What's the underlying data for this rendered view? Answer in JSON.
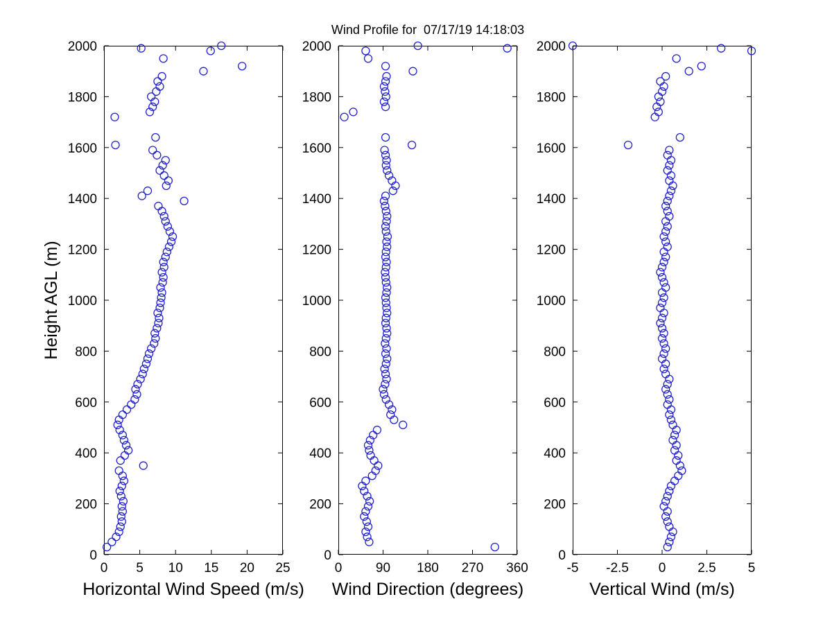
{
  "figure": {
    "background": "#FFFFFF",
    "axis_color": "#000000",
    "marker_color": "#2222CC"
  },
  "chart_data": {
    "type": "scatter",
    "title": "Wind Profile for  07/17/19 14:18:03",
    "legend": "none",
    "grid": false,
    "shared_y": {
      "label": "Height AGL (m)",
      "lim": [
        0,
        2000
      ],
      "ticks": [
        0,
        200,
        400,
        600,
        800,
        1000,
        1200,
        1400,
        1600,
        1800,
        2000
      ]
    },
    "heights": [
      30,
      50,
      70,
      90,
      110,
      130,
      150,
      170,
      190,
      210,
      230,
      250,
      270,
      290,
      310,
      330,
      350,
      370,
      390,
      410,
      430,
      450,
      470,
      490,
      510,
      530,
      550,
      570,
      590,
      610,
      630,
      650,
      670,
      690,
      710,
      730,
      750,
      770,
      790,
      810,
      830,
      850,
      870,
      890,
      910,
      930,
      950,
      970,
      990,
      1010,
      1030,
      1050,
      1070,
      1090,
      1110,
      1130,
      1150,
      1170,
      1190,
      1210,
      1230,
      1250,
      1270,
      1290,
      1310,
      1330,
      1350,
      1370,
      1390,
      1410,
      1430,
      1450,
      1470,
      1490,
      1510,
      1530,
      1550,
      1570,
      1590,
      1610,
      1640,
      1720,
      1740,
      1760,
      1780,
      1800,
      1820,
      1840,
      1860,
      1880,
      1900,
      1920,
      1950,
      1980,
      1990,
      2000
    ],
    "panels": [
      {
        "xlabel": "Horizontal Wind Speed (m/s)",
        "xlim": [
          0,
          25
        ],
        "xticks": [
          0,
          5,
          10,
          15,
          20,
          25
        ],
        "values": [
          0.4,
          1.1,
          1.7,
          2.1,
          2.3,
          2.5,
          2.4,
          2.6,
          2.5,
          2.7,
          2.4,
          2.2,
          2.5,
          2.8,
          2.6,
          2.1,
          5.5,
          2.3,
          2.9,
          3.4,
          3.1,
          2.8,
          2.6,
          2.2,
          1.9,
          2.1,
          2.6,
          3.2,
          3.8,
          4.3,
          4.6,
          4.4,
          4.7,
          5.1,
          5.4,
          5.6,
          5.9,
          6.1,
          6.3,
          6.6,
          7.0,
          7.2,
          7.1,
          7.4,
          7.6,
          7.7,
          7.5,
          7.8,
          7.9,
          8.0,
          8.1,
          7.9,
          8.2,
          8.3,
          8.1,
          8.4,
          8.3,
          8.6,
          8.8,
          9.1,
          9.4,
          9.6,
          9.2,
          8.9,
          8.6,
          8.4,
          8.1,
          7.6,
          11.2,
          5.3,
          6.1,
          8.7,
          9.0,
          8.4,
          7.8,
          8.2,
          8.6,
          7.4,
          6.8,
          1.6,
          7.2,
          1.5,
          6.4,
          6.8,
          7.1,
          6.6,
          7.3,
          7.8,
          7.5,
          8.1,
          13.9,
          19.3,
          8.3,
          14.9,
          5.2,
          16.4
        ]
      },
      {
        "xlabel": "Wind Direction (degrees)",
        "xlim": [
          0,
          360
        ],
        "xticks": [
          0,
          90,
          180,
          270,
          360
        ],
        "values": [
          315,
          62,
          58,
          55,
          60,
          57,
          52,
          55,
          60,
          63,
          58,
          52,
          48,
          55,
          68,
          75,
          80,
          72,
          65,
          62,
          60,
          64,
          70,
          78,
          130,
          112,
          105,
          108,
          102,
          96,
          92,
          90,
          94,
          97,
          95,
          93,
          96,
          98,
          95,
          97,
          94,
          96,
          98,
          97,
          95,
          96,
          98,
          97,
          96,
          95,
          97,
          98,
          96,
          95,
          94,
          96,
          97,
          95,
          96,
          98,
          97,
          99,
          96,
          95,
          97,
          98,
          96,
          94,
          92,
          95,
          110,
          115,
          108,
          102,
          98,
          96,
          97,
          95,
          93,
          148,
          95,
          12,
          30,
          95,
          92,
          96,
          94,
          92,
          95,
          97,
          150,
          95,
          60,
          55,
          340,
          160
        ]
      },
      {
        "xlabel": "Vertical Wind (m/s)",
        "xlim": [
          -5,
          5
        ],
        "xticks": [
          -5,
          -2.5,
          0,
          2.5,
          5
        ],
        "values": [
          0.3,
          0.4,
          0.5,
          0.6,
          0.4,
          0.3,
          0.2,
          0.3,
          0.1,
          0.2,
          0.3,
          0.4,
          0.5,
          0.7,
          0.9,
          1.1,
          1.0,
          0.8,
          0.9,
          0.7,
          0.8,
          0.6,
          0.7,
          0.8,
          0.6,
          0.5,
          0.4,
          0.5,
          0.3,
          0.4,
          0.3,
          0.2,
          0.3,
          0.4,
          0.2,
          0.1,
          0.2,
          0.0,
          0.1,
          0.2,
          0.1,
          0.0,
          0.1,
          0.0,
          -0.1,
          0.0,
          0.1,
          -0.1,
          0.0,
          0.1,
          0.0,
          0.2,
          0.1,
          0.0,
          -0.1,
          0.0,
          0.1,
          0.2,
          0.1,
          0.3,
          0.2,
          0.1,
          0.2,
          0.3,
          0.2,
          0.4,
          0.3,
          0.2,
          0.3,
          0.4,
          0.5,
          0.6,
          0.4,
          0.5,
          0.3,
          0.4,
          0.5,
          0.3,
          0.4,
          -1.9,
          1.0,
          -0.4,
          -0.2,
          -0.3,
          -0.1,
          -0.2,
          0.0,
          0.1,
          -0.1,
          0.2,
          1.5,
          2.2,
          0.8,
          5.0,
          3.3,
          -5.0
        ]
      }
    ]
  }
}
